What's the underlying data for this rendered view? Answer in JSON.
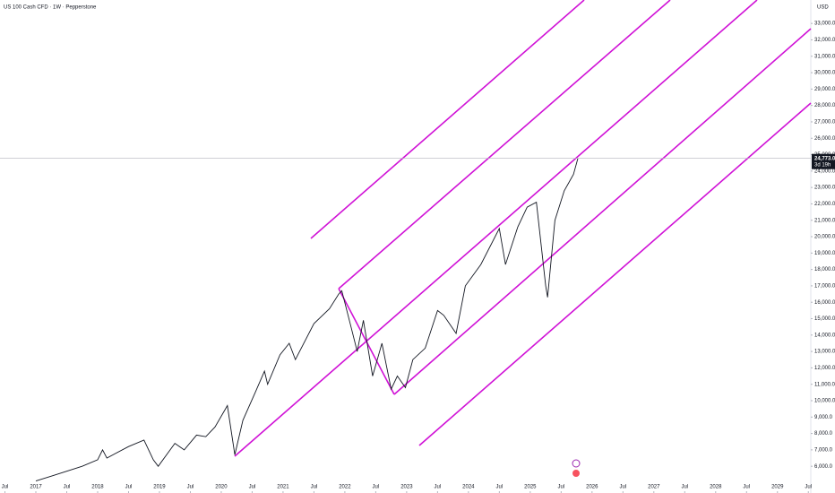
{
  "chart_data": {
    "type": "line",
    "title": "US 100 Cash CFD · 1W · Pepperstone",
    "currency": "USD",
    "series": [
      {
        "name": "US 100 Cash CFD",
        "color": "#131722",
        "x": [
          2017.0,
          2017.25,
          2017.5,
          2017.75,
          2018.0,
          2018.08,
          2018.15,
          2018.5,
          2018.75,
          2018.9,
          2018.98,
          2019.25,
          2019.4,
          2019.6,
          2019.75,
          2019.9,
          2020.1,
          2020.22,
          2020.35,
          2020.55,
          2020.7,
          2020.75,
          2020.95,
          2021.1,
          2021.2,
          2021.5,
          2021.75,
          2021.9,
          2021.95,
          2022.1,
          2022.2,
          2022.3,
          2022.45,
          2022.6,
          2022.75,
          2022.85,
          2022.98,
          2023.1,
          2023.3,
          2023.5,
          2023.6,
          2023.8,
          2023.95,
          2024.2,
          2024.5,
          2024.6,
          2024.8,
          2024.95,
          2025.1,
          2025.25,
          2025.28,
          2025.4,
          2025.55,
          2025.7,
          2025.77
        ],
        "values": [
          5100,
          5400,
          5700,
          6000,
          6400,
          7000,
          6500,
          7200,
          7600,
          6400,
          6000,
          7400,
          7000,
          7900,
          7800,
          8400,
          9700,
          6700,
          8800,
          10500,
          11800,
          11000,
          12800,
          13500,
          12500,
          14700,
          15600,
          16500,
          16700,
          14500,
          13000,
          14900,
          11500,
          13500,
          10700,
          11500,
          10800,
          12500,
          13200,
          15500,
          15200,
          14100,
          17000,
          18300,
          20500,
          18300,
          20600,
          21800,
          22100,
          17000,
          16300,
          21000,
          22800,
          23800,
          24773
        ]
      }
    ],
    "last_price": {
      "value": 24773,
      "label": "24,773.0"
    },
    "countdown": "3d 19h",
    "xlim": [
      2016.42,
      2029.54
    ],
    "xticks": [
      {
        "value": 2016.5,
        "label": "Jul"
      },
      {
        "value": 2017,
        "label": "2017"
      },
      {
        "value": 2017.5,
        "label": "Jul"
      },
      {
        "value": 2018,
        "label": "2018"
      },
      {
        "value": 2018.5,
        "label": "Jul"
      },
      {
        "value": 2019,
        "label": "2019"
      },
      {
        "value": 2019.5,
        "label": "Jul"
      },
      {
        "value": 2020,
        "label": "2020"
      },
      {
        "value": 2020.5,
        "label": "Jul"
      },
      {
        "value": 2021,
        "label": "2021"
      },
      {
        "value": 2021.5,
        "label": "Jul"
      },
      {
        "value": 2022,
        "label": "2022"
      },
      {
        "value": 2022.5,
        "label": "Jul"
      },
      {
        "value": 2023,
        "label": "2023"
      },
      {
        "value": 2023.5,
        "label": "Jul"
      },
      {
        "value": 2024,
        "label": "2024"
      },
      {
        "value": 2024.5,
        "label": "Jul"
      },
      {
        "value": 2025,
        "label": "2025"
      },
      {
        "value": 2025.5,
        "label": "Jul"
      },
      {
        "value": 2026,
        "label": "2026"
      },
      {
        "value": 2026.5,
        "label": "Jul"
      },
      {
        "value": 2027,
        "label": "2027"
      },
      {
        "value": 2027.5,
        "label": "Jul"
      },
      {
        "value": 2028,
        "label": "2028"
      },
      {
        "value": 2028.5,
        "label": "Jul"
      },
      {
        "value": 2029,
        "label": "2029"
      },
      {
        "value": 2029.5,
        "label": "Jul"
      }
    ],
    "ylim": [
      4370,
      34430
    ],
    "yticks": [
      {
        "value": 6000,
        "label": "6,000.0"
      },
      {
        "value": 7000,
        "label": "7,000.0"
      },
      {
        "value": 8000,
        "label": "8,000.0"
      },
      {
        "value": 9000,
        "label": "9,000.0"
      },
      {
        "value": 10000,
        "label": "10,000.0"
      },
      {
        "value": 11000,
        "label": "11,000.0"
      },
      {
        "value": 12000,
        "label": "12,000.0"
      },
      {
        "value": 13000,
        "label": "13,000.0"
      },
      {
        "value": 14000,
        "label": "14,000.0"
      },
      {
        "value": 15000,
        "label": "15,000.0"
      },
      {
        "value": 16000,
        "label": "16,000.0"
      },
      {
        "value": 17000,
        "label": "17,000.0"
      },
      {
        "value": 18000,
        "label": "18,000.0"
      },
      {
        "value": 19000,
        "label": "19,000.0"
      },
      {
        "value": 20000,
        "label": "20,000.0"
      },
      {
        "value": 21000,
        "label": "21,000.0"
      },
      {
        "value": 22000,
        "label": "22,000.0"
      },
      {
        "value": 23000,
        "label": "23,000.0"
      },
      {
        "value": 24000,
        "label": "24,000.0"
      },
      {
        "value": 25000,
        "label": "25,000.0"
      },
      {
        "value": 26000,
        "label": "26,000.0"
      },
      {
        "value": 27000,
        "label": "27,000.0"
      },
      {
        "value": 28000,
        "label": "28,000.0"
      },
      {
        "value": 29000,
        "label": "29,000.0"
      },
      {
        "value": 30000,
        "label": "30,000.0"
      },
      {
        "value": 31000,
        "label": "31,000.0"
      },
      {
        "value": 32000,
        "label": "32,000.0"
      },
      {
        "value": 33000,
        "label": "33,000.0"
      }
    ],
    "grid": false
  }
}
